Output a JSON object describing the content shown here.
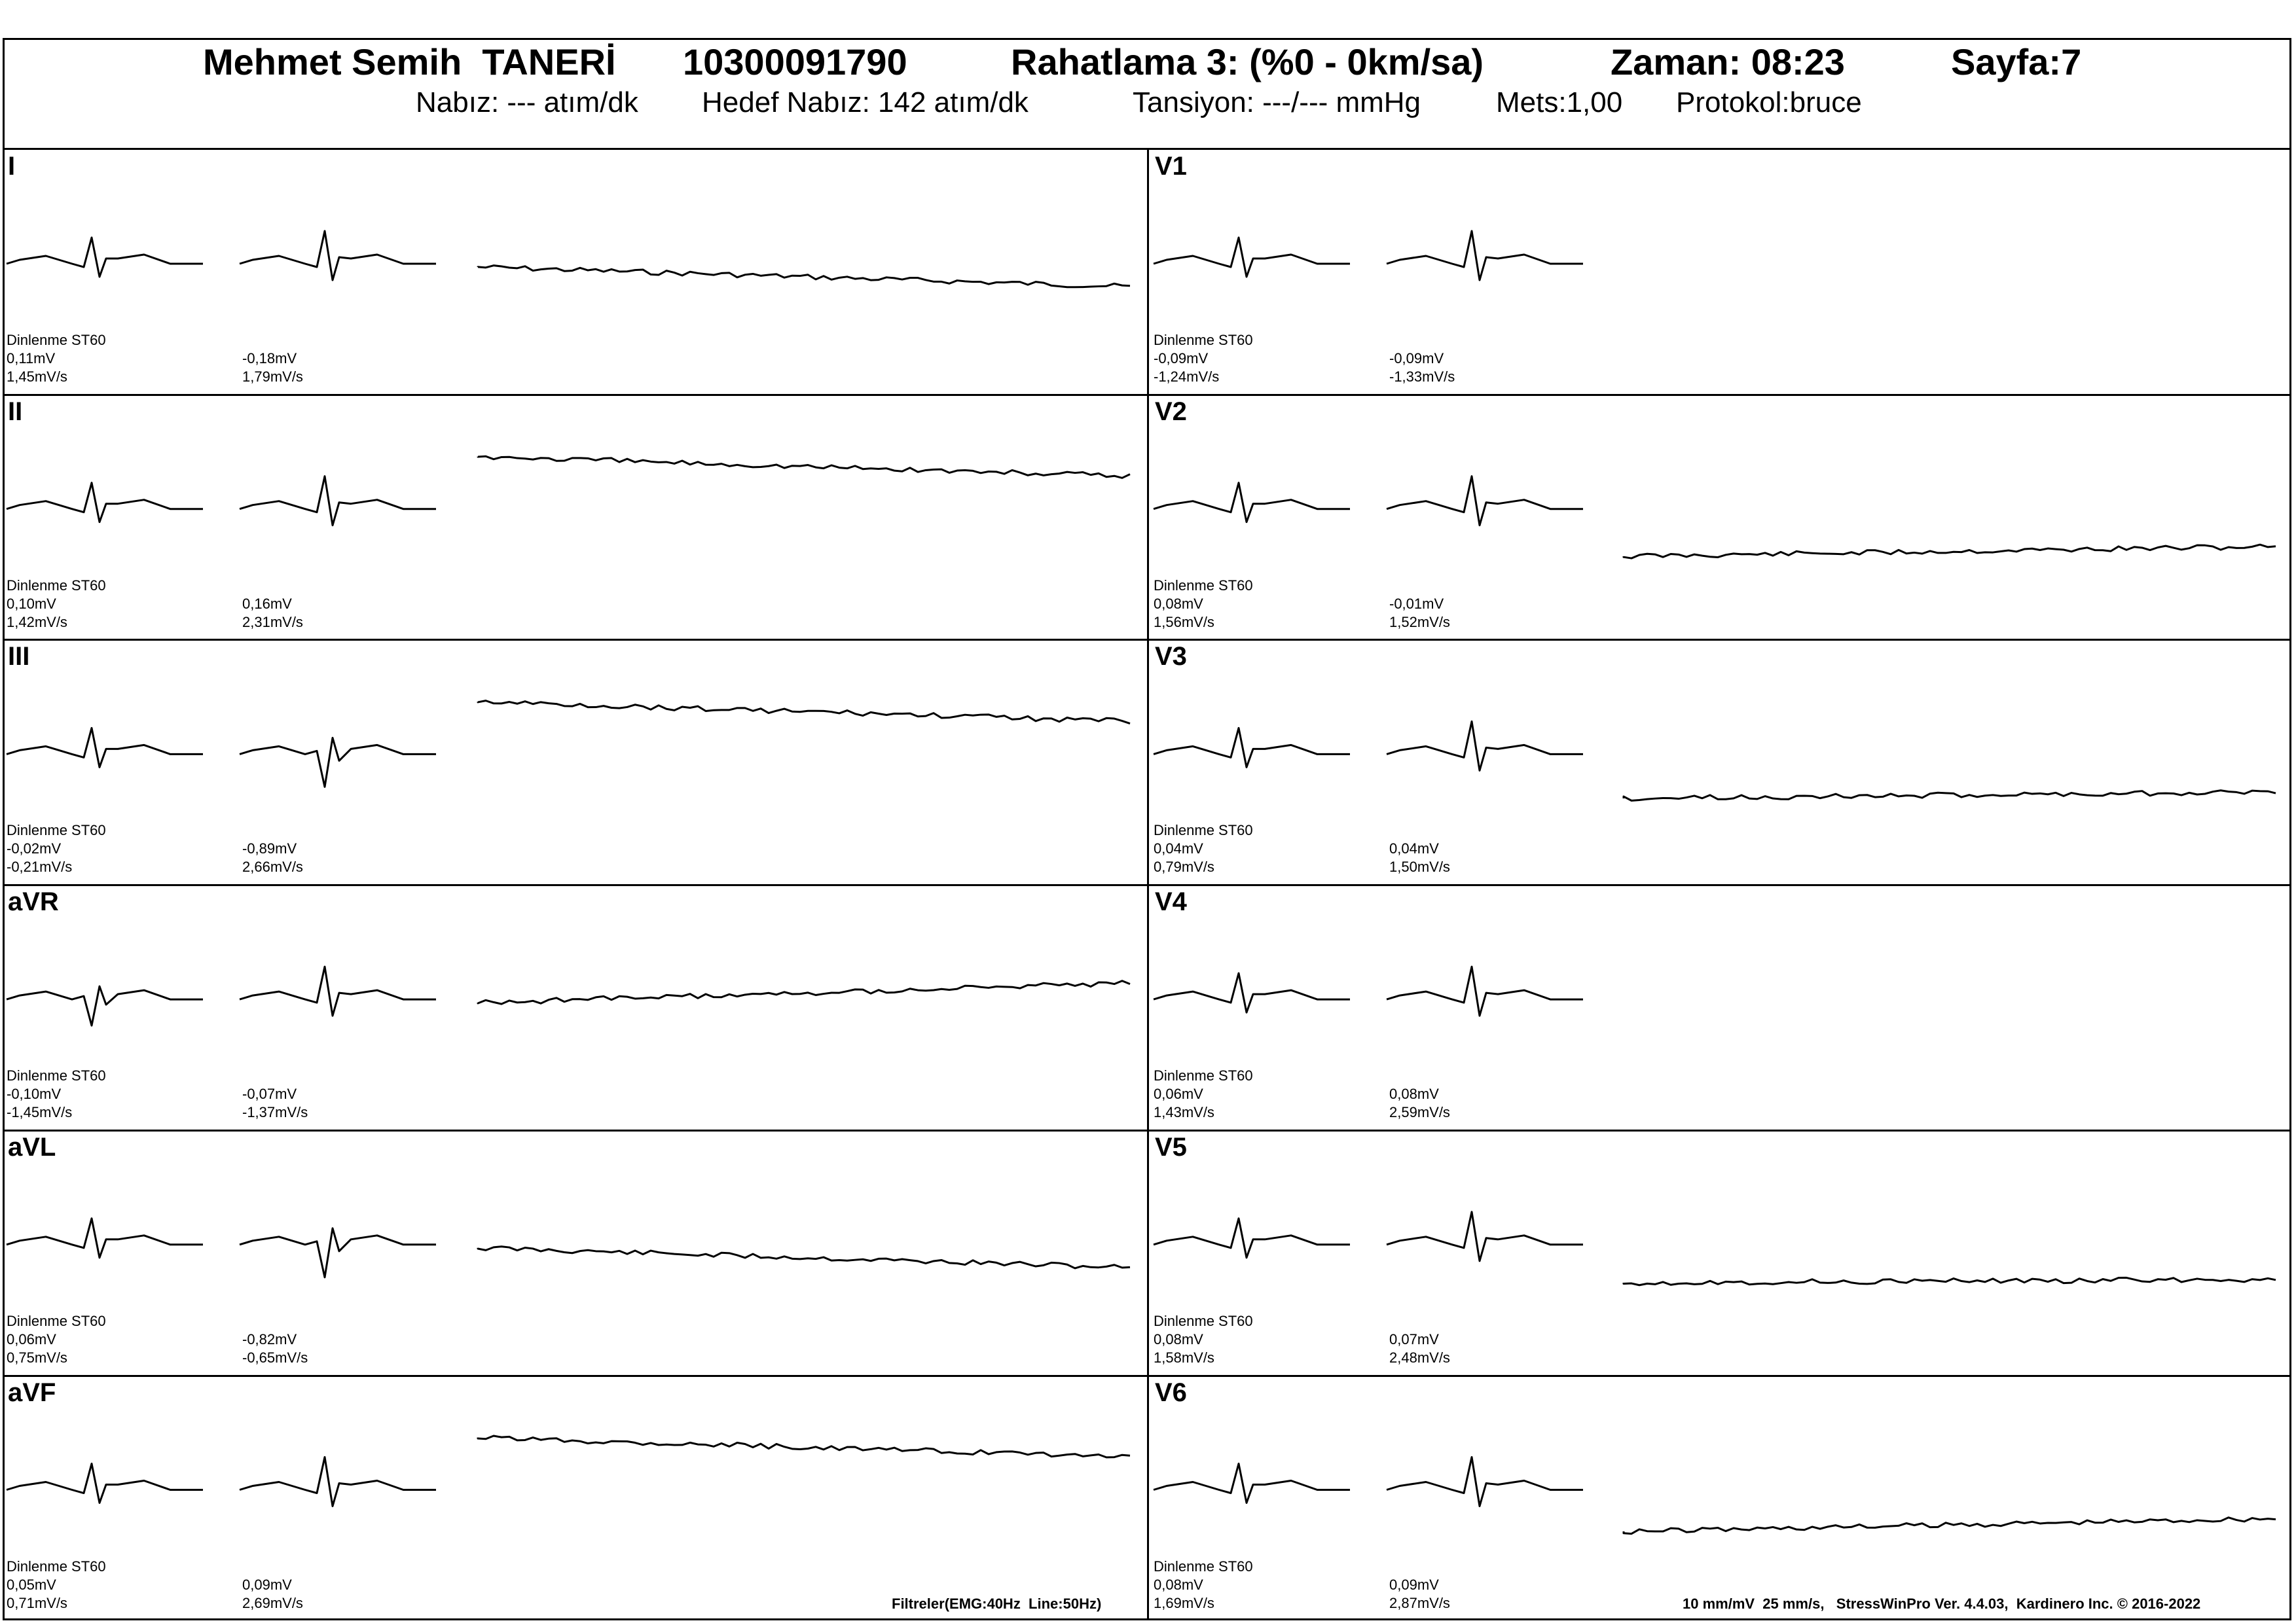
{
  "header": {
    "patient_name": "Mehmet Semih  TANERİ",
    "patient_id": "10300091790",
    "stage": "Rahatlama 3: (%0 - 0km/sa)",
    "time": "Zaman: 08:23",
    "page": "Sayfa:7",
    "pulse": "Nabız: --- atım/dk",
    "target_pulse": "Hedef Nabız: 142 atım/dk",
    "blood_pressure": "Tansiyon: ---/--- mmHg",
    "mets": "Mets:1,00",
    "protocol": "Protokol:bruce"
  },
  "leads": [
    {
      "name": "I",
      "ref": "Dinlenme ST60",
      "rest_mv": "0,11mV",
      "rest_slope": "1,45mV/s",
      "cur_mv": "-0,18mV",
      "cur_slope": "1,79mV/s"
    },
    {
      "name": "II",
      "ref": "Dinlenme ST60",
      "rest_mv": "0,10mV",
      "rest_slope": "1,42mV/s",
      "cur_mv": "0,16mV",
      "cur_slope": "2,31mV/s"
    },
    {
      "name": "III",
      "ref": "Dinlenme ST60",
      "rest_mv": "-0,02mV",
      "rest_slope": "-0,21mV/s",
      "cur_mv": "-0,89mV",
      "cur_slope": "2,66mV/s"
    },
    {
      "name": "aVR",
      "ref": "Dinlenme ST60",
      "rest_mv": "-0,10mV",
      "rest_slope": "-1,45mV/s",
      "cur_mv": "-0,07mV",
      "cur_slope": "-1,37mV/s"
    },
    {
      "name": "aVL",
      "ref": "Dinlenme ST60",
      "rest_mv": "0,06mV",
      "rest_slope": "0,75mV/s",
      "cur_mv": "-0,82mV",
      "cur_slope": "-0,65mV/s"
    },
    {
      "name": "aVF",
      "ref": "Dinlenme ST60",
      "rest_mv": "0,05mV",
      "rest_slope": "0,71mV/s",
      "cur_mv": "0,09mV",
      "cur_slope": "2,69mV/s"
    },
    {
      "name": "V1",
      "ref": "Dinlenme ST60",
      "rest_mv": "-0,09mV",
      "rest_slope": "-1,24mV/s",
      "cur_mv": "-0,09mV",
      "cur_slope": "-1,33mV/s"
    },
    {
      "name": "V2",
      "ref": "Dinlenme ST60",
      "rest_mv": "0,08mV",
      "rest_slope": "1,56mV/s",
      "cur_mv": "-0,01mV",
      "cur_slope": "1,52mV/s"
    },
    {
      "name": "V3",
      "ref": "Dinlenme ST60",
      "rest_mv": "0,04mV",
      "rest_slope": "0,79mV/s",
      "cur_mv": "0,04mV",
      "cur_slope": "1,50mV/s"
    },
    {
      "name": "V4",
      "ref": "Dinlenme ST60",
      "rest_mv": "0,06mV",
      "rest_slope": "1,43mV/s",
      "cur_mv": "0,08mV",
      "cur_slope": "2,59mV/s"
    },
    {
      "name": "V5",
      "ref": "Dinlenme ST60",
      "rest_mv": "0,08mV",
      "rest_slope": "1,58mV/s",
      "cur_mv": "0,07mV",
      "cur_slope": "2,48mV/s"
    },
    {
      "name": "V6",
      "ref": "Dinlenme ST60",
      "rest_mv": "0,08mV",
      "rest_slope": "1,69mV/s",
      "cur_mv": "0,09mV",
      "cur_slope": "2,87mV/s"
    }
  ],
  "footer": {
    "filters": "Filtreler(EMG:40Hz  Line:50Hz)",
    "info": "10 mm/mV  25 mm/s,   StressWinPro Ver. 4.4.03,  Kardinero Inc. © 2016-2022"
  }
}
